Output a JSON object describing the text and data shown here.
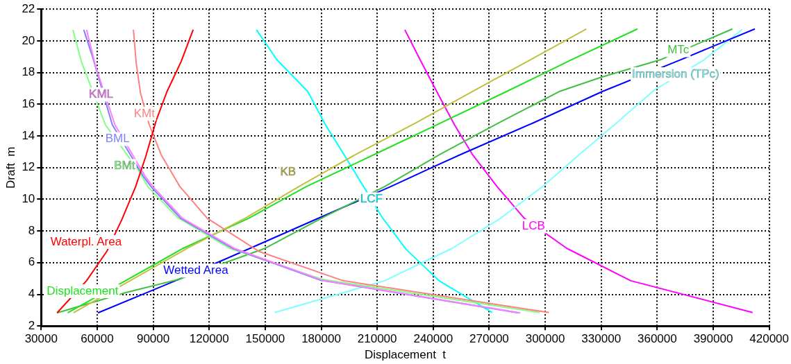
{
  "chart_data": {
    "type": "line",
    "xlabel": "Displacement  t",
    "ylabel": "Draft  m",
    "xlim": [
      30000,
      420000
    ],
    "ylim": [
      2,
      22
    ],
    "xticks": [
      30000,
      60000,
      90000,
      120000,
      150000,
      180000,
      210000,
      240000,
      270000,
      300000,
      330000,
      360000,
      390000,
      420000
    ],
    "yticks": [
      2,
      4,
      6,
      8,
      10,
      12,
      14,
      16,
      18,
      20,
      22
    ],
    "grid": true,
    "series": [
      {
        "name": "Waterpl. Area",
        "color": "#ff0000",
        "x": [
          38500,
          54300,
          65100,
          73300,
          80600,
          86000,
          91700,
          97400,
          105000,
          111400
        ],
        "values": [
          2.83,
          4.86,
          6.7,
          8.74,
          10.8,
          12.7,
          15,
          16.8,
          18.7,
          20.7
        ]
      },
      {
        "name": "KMt",
        "color": "#ff8080",
        "x": [
          302000,
          191700,
          146800,
          119000,
          104300,
          94300,
          87900,
          83200,
          80900,
          79400
        ],
        "values": [
          2.85,
          4.86,
          6.7,
          8.8,
          10.8,
          12.8,
          14.7,
          16.7,
          18.6,
          20.7
        ]
      },
      {
        "name": "KML",
        "color": "#ff80ff",
        "x": [
          286700,
          180300,
          133500,
          105700,
          89800,
          86000,
          69500,
          59400,
          54300
        ],
        "values": [
          2.83,
          4.9,
          6.9,
          8.8,
          10.8,
          11.4,
          14.7,
          18.3,
          20.7
        ]
      },
      {
        "name": "BML",
        "color": "#8080ff",
        "x": [
          285700,
          179300,
          132500,
          104700,
          88800,
          85000,
          68100,
          57900,
          52800
        ],
        "values": [
          2.83,
          4.9,
          6.9,
          8.8,
          10.8,
          11.4,
          14.7,
          18.85,
          20.7
        ]
      },
      {
        "name": "BMt",
        "color": "#80ff80",
        "x": [
          297000,
          180300,
          131000,
          103000,
          87100,
          82200,
          64400,
          51500,
          47000
        ],
        "values": [
          2.85,
          4.95,
          6.9,
          8.85,
          10.8,
          11.8,
          14.7,
          18.7,
          20.7
        ]
      },
      {
        "name": "KB",
        "color": "#c0c040",
        "x": [
          47300,
          108200,
          139200,
          168000,
          198800,
          230400,
          260900,
          292000,
          322000
        ],
        "values": [
          2.83,
          6.9,
          8.8,
          10.8,
          12.85,
          14.8,
          16.8,
          18.8,
          20.75
        ]
      },
      {
        "name": "Displacement",
        "color": "#20e020",
        "x": [
          44200,
          75200,
          106000,
          141100,
          172000,
          208900,
          243800,
          279300,
          313900,
          349400
        ],
        "values": [
          2.83,
          4.86,
          6.9,
          8.8,
          10.8,
          12.85,
          14.8,
          16.8,
          18.8,
          20.75
        ]
      },
      {
        "name": "MTc",
        "color": "#40c040",
        "x": [
          38500,
          75000,
          103800,
          149900,
          181700,
          214000,
          243800,
          274800,
          307500,
          329900,
          361600,
          400300
        ],
        "values": [
          2.83,
          4.1,
          4.95,
          6.9,
          8.9,
          10.8,
          12.85,
          14.8,
          16.8,
          17.7,
          18.8,
          20.75
        ]
      },
      {
        "name": "Wetted Area",
        "color": "#0000ff",
        "x": [
          60400,
          103800,
          141800,
          180400,
          217200,
          239300,
          255200,
          293200,
          330600,
          372400,
          412300
        ],
        "values": [
          2.83,
          4.95,
          6.9,
          8.9,
          10.8,
          12,
          12.85,
          14.8,
          16.8,
          18.8,
          20.75
        ]
      },
      {
        "name": "LCF",
        "color": "#00ffff",
        "x": [
          145300,
          156300,
          172800,
          182300,
          191800,
          202700,
          212700,
          225400,
          243100,
          271700
        ],
        "values": [
          20.7,
          18.8,
          16.8,
          14.7,
          12.9,
          10.8,
          8.85,
          6.85,
          4.86,
          2.85
        ]
      },
      {
        "name": "Immersion (TPc)",
        "color": "#80ffff",
        "x": [
          155100,
          214000,
          250100,
          276100,
          299600,
          318600,
          337600,
          358500,
          385100,
          405400
        ],
        "values": [
          2.85,
          4.86,
          6.9,
          8.8,
          10.9,
          12.85,
          14.75,
          16.9,
          18.8,
          20.7
        ]
      },
      {
        "name": "LCB",
        "color": "#ff00ff",
        "x": [
          224800,
          233000,
          241900,
          251400,
          260900,
          274200,
          288800,
          311600,
          345800,
          411100
        ],
        "values": [
          20.7,
          18.8,
          16.8,
          14.7,
          12.85,
          10.8,
          8.8,
          6.9,
          4.86,
          2.85
        ]
      }
    ]
  }
}
